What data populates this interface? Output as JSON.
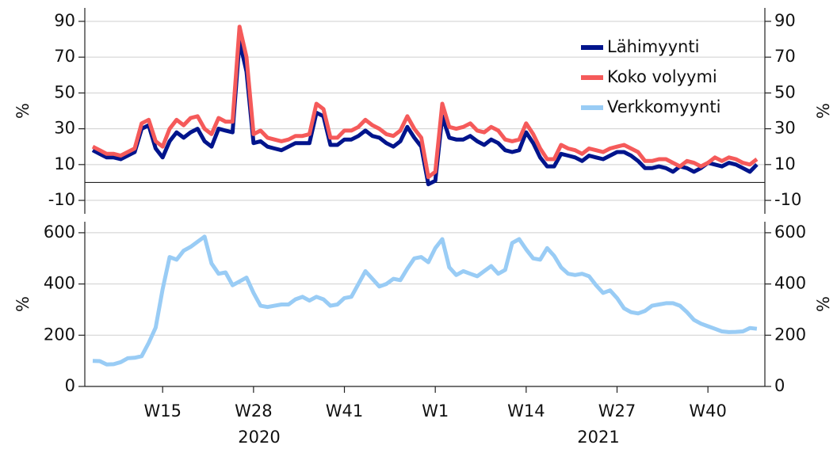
{
  "chart_data": [
    {
      "type": "line",
      "y_label": "%",
      "ylim": [
        -17.5,
        97.5
      ],
      "yticks": [
        -10,
        10,
        30,
        50,
        70,
        90
      ],
      "grid": true,
      "legend": "upper right",
      "series": [
        {
          "name": "Lähimyynti",
          "color": "#00148c",
          "values": [
            18,
            16,
            14,
            14,
            13,
            15,
            17,
            30,
            32,
            19,
            14,
            23,
            28,
            25,
            28,
            30,
            23,
            20,
            30,
            29,
            28,
            79,
            62,
            22,
            23,
            20,
            19,
            18,
            20,
            22,
            22,
            22,
            39,
            37,
            21,
            21,
            24,
            24,
            26,
            29,
            26,
            25,
            22,
            20,
            23,
            31,
            25,
            20,
            -1,
            1,
            37,
            25,
            24,
            24,
            26,
            23,
            21,
            24,
            22,
            18,
            17,
            18,
            28,
            22,
            14,
            9,
            9,
            16,
            15,
            14,
            12,
            15,
            14,
            13,
            15,
            17,
            17,
            15,
            12,
            8,
            8,
            9,
            8,
            6,
            9,
            8,
            6,
            8,
            11,
            10,
            9,
            11,
            10,
            8,
            6,
            10
          ]
        },
        {
          "name": "Koko volyymi",
          "color": "#f55a5a",
          "values": [
            20,
            18,
            16,
            16,
            15,
            17,
            19,
            33,
            35,
            23,
            20,
            30,
            35,
            32,
            36,
            37,
            30,
            27,
            36,
            34,
            34,
            87,
            70,
            27,
            29,
            25,
            24,
            23,
            24,
            26,
            26,
            27,
            44,
            41,
            25,
            25,
            29,
            29,
            31,
            35,
            32,
            30,
            27,
            26,
            29,
            37,
            30,
            25,
            3,
            6,
            44,
            31,
            30,
            31,
            33,
            29,
            28,
            31,
            29,
            24,
            23,
            24,
            33,
            27,
            19,
            13,
            13,
            21,
            19,
            18,
            16,
            19,
            18,
            17,
            19,
            20,
            21,
            19,
            17,
            12,
            12,
            13,
            13,
            11,
            9,
            12,
            11,
            9,
            11,
            14,
            12,
            14,
            13,
            11,
            10,
            13
          ]
        }
      ]
    },
    {
      "type": "line",
      "y_label": "%",
      "ylim": [
        0,
        643
      ],
      "yticks": [
        0,
        200,
        400,
        600
      ],
      "grid": true,
      "categories": [
        null,
        null,
        null,
        null,
        null,
        null,
        null,
        null,
        null,
        null,
        "W15",
        null,
        null,
        null,
        null,
        null,
        null,
        null,
        null,
        null,
        null,
        null,
        null,
        "W28",
        null,
        null,
        null,
        null,
        null,
        null,
        null,
        null,
        null,
        null,
        null,
        null,
        "W41",
        null,
        null,
        null,
        null,
        null,
        null,
        null,
        null,
        null,
        null,
        null,
        null,
        "W1",
        null,
        null,
        null,
        null,
        null,
        null,
        null,
        null,
        null,
        null,
        null,
        null,
        "W14",
        null,
        null,
        null,
        null,
        null,
        null,
        null,
        null,
        null,
        null,
        null,
        null,
        "W27",
        null,
        null,
        null,
        null,
        null,
        null,
        null,
        null,
        null,
        null,
        null,
        null,
        "W40",
        null,
        null,
        null,
        null,
        null,
        null,
        null
      ],
      "x_group_labels": [
        "2020",
        "2021"
      ],
      "series": [
        {
          "name": "Verkkomyynti",
          "color": "#99ccf5",
          "values": [
            100,
            99,
            86,
            87,
            95,
            110,
            112,
            118,
            170,
            230,
            380,
            505,
            495,
            530,
            545,
            565,
            585,
            480,
            440,
            445,
            395,
            410,
            425,
            365,
            315,
            310,
            315,
            320,
            320,
            340,
            350,
            335,
            350,
            340,
            315,
            320,
            345,
            350,
            400,
            450,
            420,
            390,
            400,
            420,
            415,
            460,
            500,
            505,
            485,
            540,
            575,
            465,
            435,
            450,
            440,
            430,
            450,
            470,
            440,
            455,
            560,
            575,
            535,
            500,
            495,
            540,
            510,
            465,
            440,
            435,
            440,
            430,
            395,
            365,
            375,
            345,
            305,
            290,
            285,
            295,
            315,
            320,
            325,
            325,
            315,
            290,
            260,
            245,
            235,
            225,
            215,
            212,
            213,
            215,
            228,
            225
          ]
        }
      ]
    }
  ]
}
